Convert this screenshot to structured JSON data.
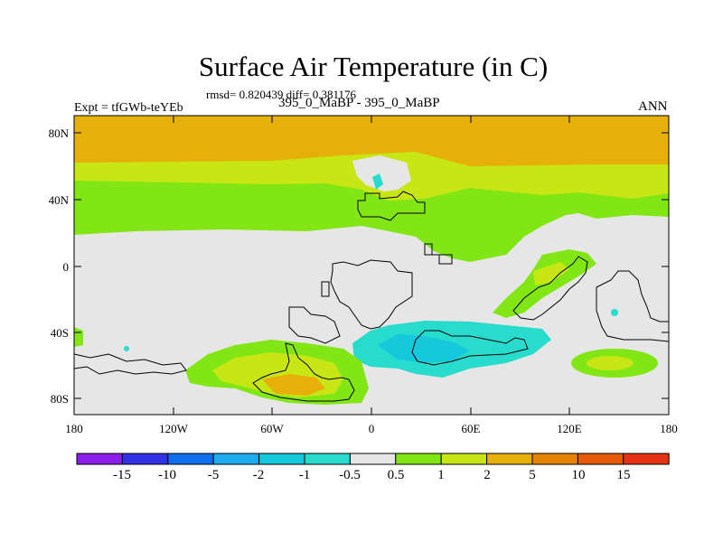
{
  "title": "Surface Air Temperature (in C)",
  "stats_line": "rmsd= 0.820439 diff= 0.381176",
  "experiment": "Expt = tfGWb-teYEb",
  "case_line": "395_0_MaBP - 395_0_MaBP",
  "season": "ANN",
  "colors": {
    "c1": "#8c1eec",
    "c2": "#3232e6",
    "c3": "#0f6eeb",
    "c4": "#1eaaf0",
    "c5": "#16c8dc",
    "c6": "#28dccd",
    "c7": "#e6e6e6",
    "c8": "#82e614",
    "c9": "#c8e614",
    "c10": "#e6af0a",
    "c11": "#e68205",
    "c12": "#e65a0a",
    "c13": "#e63214"
  },
  "map": {
    "lat_ticks": [
      "80N",
      "40N",
      "0",
      "40S",
      "80S"
    ],
    "lon_ticks": [
      "180",
      "120W",
      "60W",
      "0",
      "60E",
      "120E",
      "180"
    ]
  },
  "colorbar": {
    "labels": [
      "-15",
      "-10",
      "-5",
      "-2",
      "-1",
      "-0.5",
      "0.5",
      "1",
      "2",
      "5",
      "10",
      "15"
    ]
  }
}
